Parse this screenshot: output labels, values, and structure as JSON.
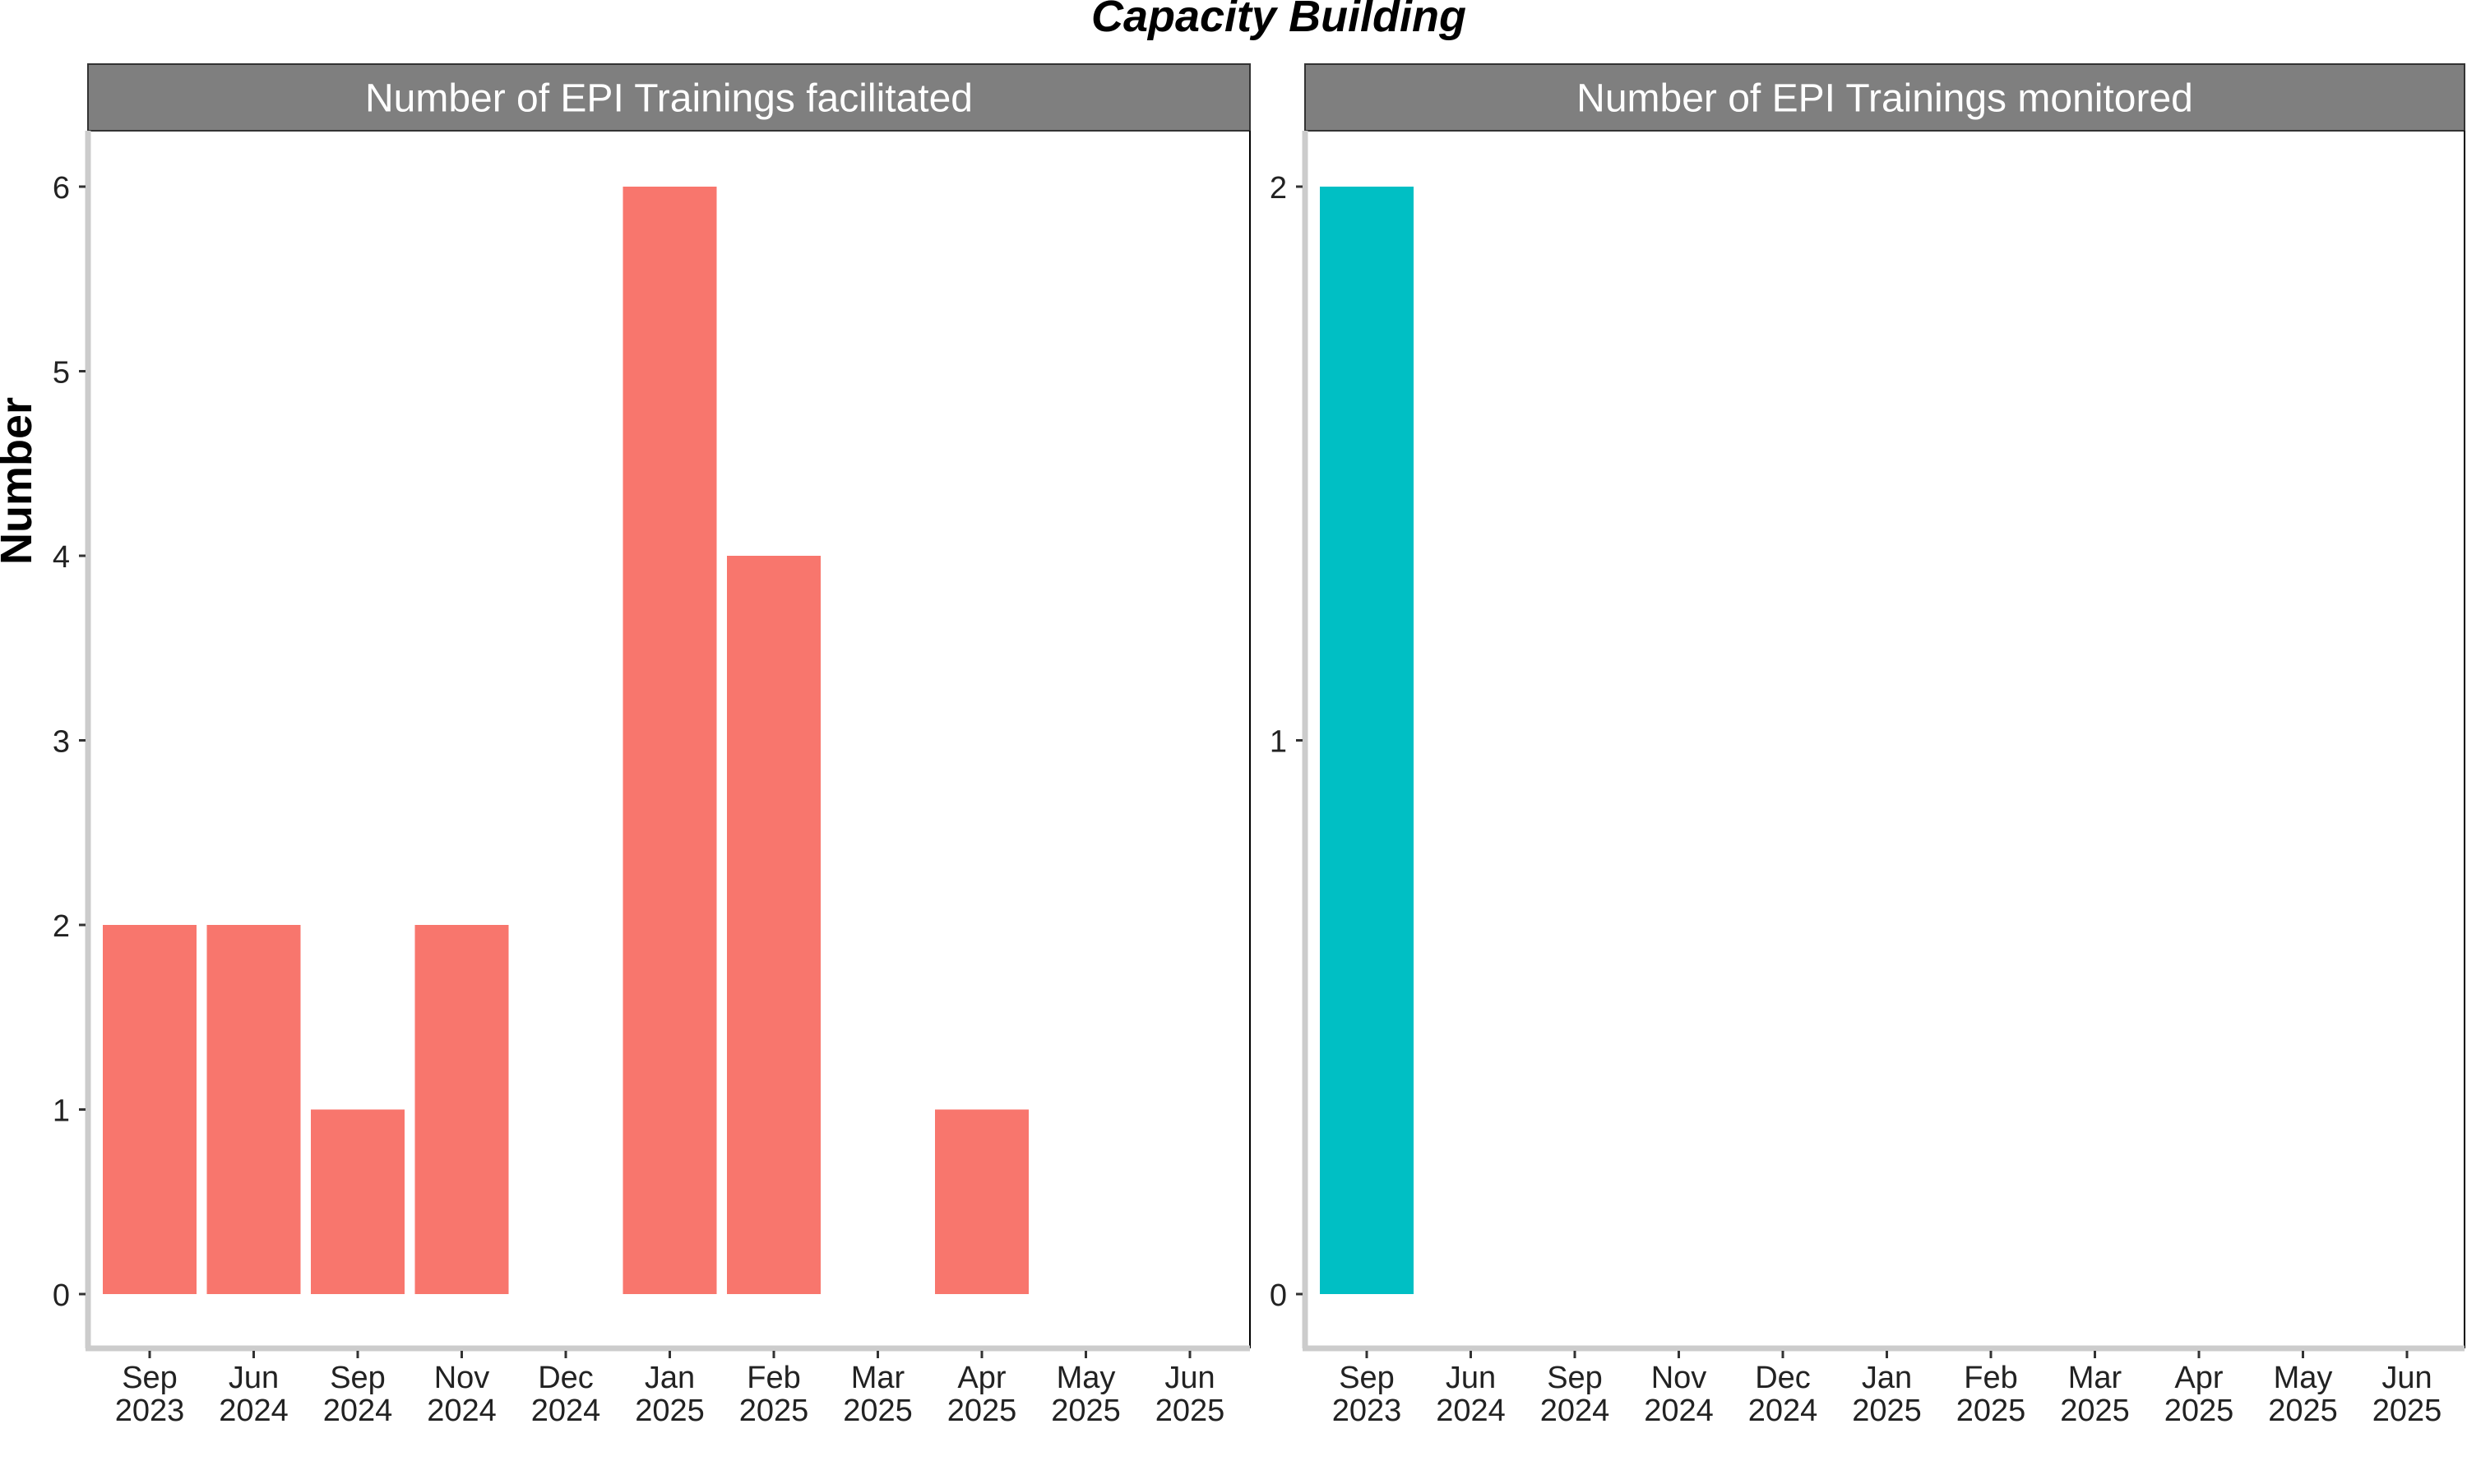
{
  "title": "Capacity Building",
  "ylabel": "Number",
  "colors": {
    "facilitated": "#F8766D",
    "monitored": "#00BFC4",
    "strip_bg": "#7F7F7F",
    "strip_text": "#FFFFFF",
    "axis_line": "#CCCCCC"
  },
  "chart_data": [
    {
      "type": "bar",
      "panel_title": "Number of EPI Trainings facilitated",
      "series": [
        {
          "values": [
            2,
            2,
            1,
            2,
            0,
            6,
            4,
            0,
            1,
            0,
            0
          ]
        }
      ],
      "categories": [
        [
          "Sep",
          "2023"
        ],
        [
          "Jun",
          "2024"
        ],
        [
          "Sep",
          "2024"
        ],
        [
          "Nov",
          "2024"
        ],
        [
          "Dec",
          "2024"
        ],
        [
          "Jan",
          "2025"
        ],
        [
          "Feb",
          "2025"
        ],
        [
          "Mar",
          "2025"
        ],
        [
          "Apr",
          "2025"
        ],
        [
          "May",
          "2025"
        ],
        [
          "Jun",
          "2025"
        ]
      ],
      "yticks": [
        0,
        1,
        2,
        3,
        4,
        5,
        6
      ],
      "ylim": [
        0,
        6
      ],
      "xlabel": "",
      "ylabel": "Number"
    },
    {
      "type": "bar",
      "panel_title": "Number of EPI Trainings monitored",
      "series": [
        {
          "values": [
            2,
            0,
            0,
            0,
            0,
            0,
            0,
            0,
            0,
            0,
            0
          ]
        }
      ],
      "categories": [
        [
          "Sep",
          "2023"
        ],
        [
          "Jun",
          "2024"
        ],
        [
          "Sep",
          "2024"
        ],
        [
          "Nov",
          "2024"
        ],
        [
          "Dec",
          "2024"
        ],
        [
          "Jan",
          "2025"
        ],
        [
          "Feb",
          "2025"
        ],
        [
          "Mar",
          "2025"
        ],
        [
          "Apr",
          "2025"
        ],
        [
          "May",
          "2025"
        ],
        [
          "Jun",
          "2025"
        ]
      ],
      "yticks": [
        0,
        1,
        2
      ],
      "ylim": [
        0,
        2
      ],
      "xlabel": "",
      "ylabel": ""
    }
  ]
}
